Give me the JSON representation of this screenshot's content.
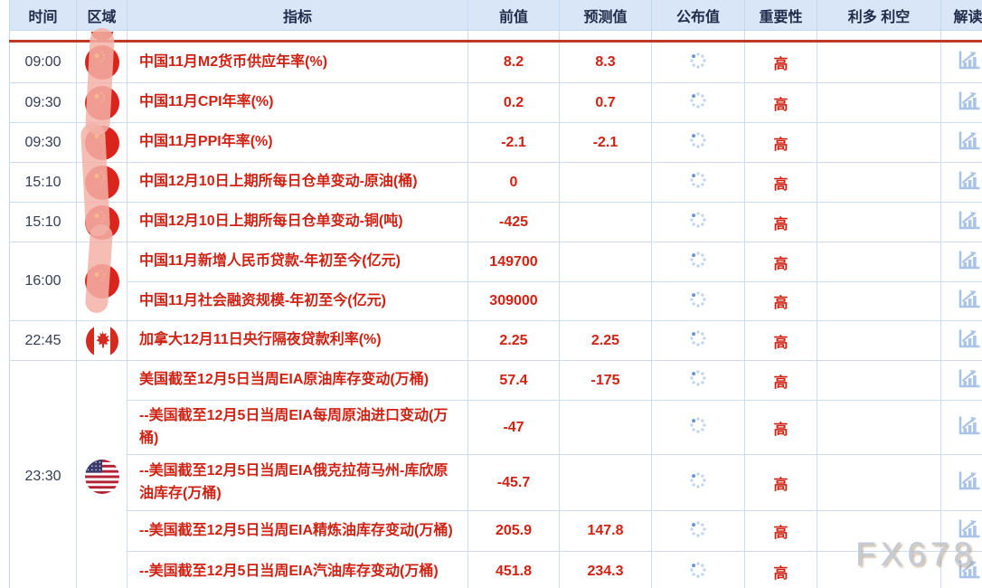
{
  "header": {
    "columns": [
      {
        "label": "时间"
      },
      {
        "label": "区域"
      },
      {
        "label": "指标"
      },
      {
        "label": "前值"
      },
      {
        "label": "预测值"
      },
      {
        "label": "公布值"
      },
      {
        "label": "重要性"
      },
      {
        "label": "利多 利空"
      },
      {
        "label": "解读"
      }
    ]
  },
  "published_status": "loading",
  "watermark": "FX678",
  "rows": [
    {
      "time": "09:00",
      "time_span": 1,
      "region": "china",
      "region_span": 1,
      "indicator": "中国11月M2货币供应年率(%)",
      "prev": "8.2",
      "forecast": "8.3",
      "published": "",
      "importance": "高",
      "bias": ""
    },
    {
      "time": "09:30",
      "time_span": 1,
      "region": "china",
      "region_span": 1,
      "indicator": "中国11月CPI年率(%)",
      "prev": "0.2",
      "forecast": "0.7",
      "published": "",
      "importance": "高",
      "bias": ""
    },
    {
      "time": "09:30",
      "time_span": 1,
      "region": "china",
      "region_span": 1,
      "indicator": "中国11月PPI年率(%)",
      "prev": "-2.1",
      "forecast": "-2.1",
      "published": "",
      "importance": "高",
      "bias": ""
    },
    {
      "time": "15:10",
      "time_span": 1,
      "region": "china",
      "region_span": 1,
      "indicator": "中国12月10日上期所每日仓单变动-原油(桶)",
      "prev": "0",
      "forecast": "",
      "published": "",
      "importance": "高",
      "bias": ""
    },
    {
      "time": "15:10",
      "time_span": 1,
      "region": "china",
      "region_span": 1,
      "indicator": "中国12月10日上期所每日仓单变动-铜(吨)",
      "prev": "-425",
      "forecast": "",
      "published": "",
      "importance": "高",
      "bias": ""
    },
    {
      "time": "16:00",
      "time_span": 2,
      "region": "china",
      "region_span": 2,
      "indicator": "中国11月新增人民币贷款-年初至今(亿元)",
      "prev": "149700",
      "forecast": "",
      "published": "",
      "importance": "高",
      "bias": ""
    },
    {
      "time": null,
      "time_span": 0,
      "region": null,
      "region_span": 0,
      "indicator": "中国11月社会融资规模-年初至今(亿元)",
      "prev": "309000",
      "forecast": "",
      "published": "",
      "importance": "高",
      "bias": ""
    },
    {
      "time": "22:45",
      "time_span": 1,
      "region": "canada",
      "region_span": 1,
      "indicator": "加拿大12月11日央行隔夜贷款利率(%)",
      "prev": "2.25",
      "forecast": "2.25",
      "published": "",
      "importance": "高",
      "bias": ""
    },
    {
      "time": "23:30",
      "time_span": 5,
      "region": "usa",
      "region_span": 5,
      "indicator": "美国截至12月5日当周EIA原油库存变动(万桶)",
      "prev": "57.4",
      "forecast": "-175",
      "published": "",
      "importance": "高",
      "bias": ""
    },
    {
      "time": null,
      "time_span": 0,
      "region": null,
      "region_span": 0,
      "indicator": "--美国截至12月5日当周EIA每周原油进口变动(万桶)",
      "prev": "-47",
      "forecast": "",
      "published": "",
      "importance": "高",
      "bias": ""
    },
    {
      "time": null,
      "time_span": 0,
      "region": null,
      "region_span": 0,
      "indicator": "--美国截至12月5日当周EIA俄克拉荷马州-库欣原油库存(万桶)",
      "prev": "-45.7",
      "forecast": "",
      "published": "",
      "importance": "高",
      "bias": ""
    },
    {
      "time": null,
      "time_span": 0,
      "region": null,
      "region_span": 0,
      "indicator": "--美国截至12月5日当周EIA精炼油库存变动(万桶)",
      "prev": "205.9",
      "forecast": "147.8",
      "published": "",
      "importance": "高",
      "bias": ""
    },
    {
      "time": null,
      "time_span": 0,
      "region": null,
      "region_span": 0,
      "indicator": "--美国截至12月5日当周EIA汽油库存变动(万桶)",
      "prev": "451.8",
      "forecast": "234.3",
      "published": "",
      "importance": "高",
      "bias": ""
    }
  ],
  "icons": {
    "published_cell": "loading-spinner-icon",
    "interpretation_cell": "chart-icon",
    "region_cells": [
      "china-flag-icon",
      "canada-flag-icon",
      "usa-flag-icon"
    ]
  },
  "colors": {
    "accent_red": "#ce2314",
    "divider_red": "#bd3a29",
    "header_bg": "#d9e6f8",
    "grid_border": "#cbdcf4",
    "spinner_dot": "#c3d5ef",
    "spinner_dot_active": "#6b93d6",
    "icon_blue": "#a9c3e9",
    "china_flag_red": "#da251d",
    "flag_star_yellow": "#ffde00",
    "canada_flag_red": "#d52b1e",
    "usa_flag_blue": "#3c3b6e",
    "usa_flag_red": "#b22234",
    "watermark_gray": "#c5cbd6"
  }
}
